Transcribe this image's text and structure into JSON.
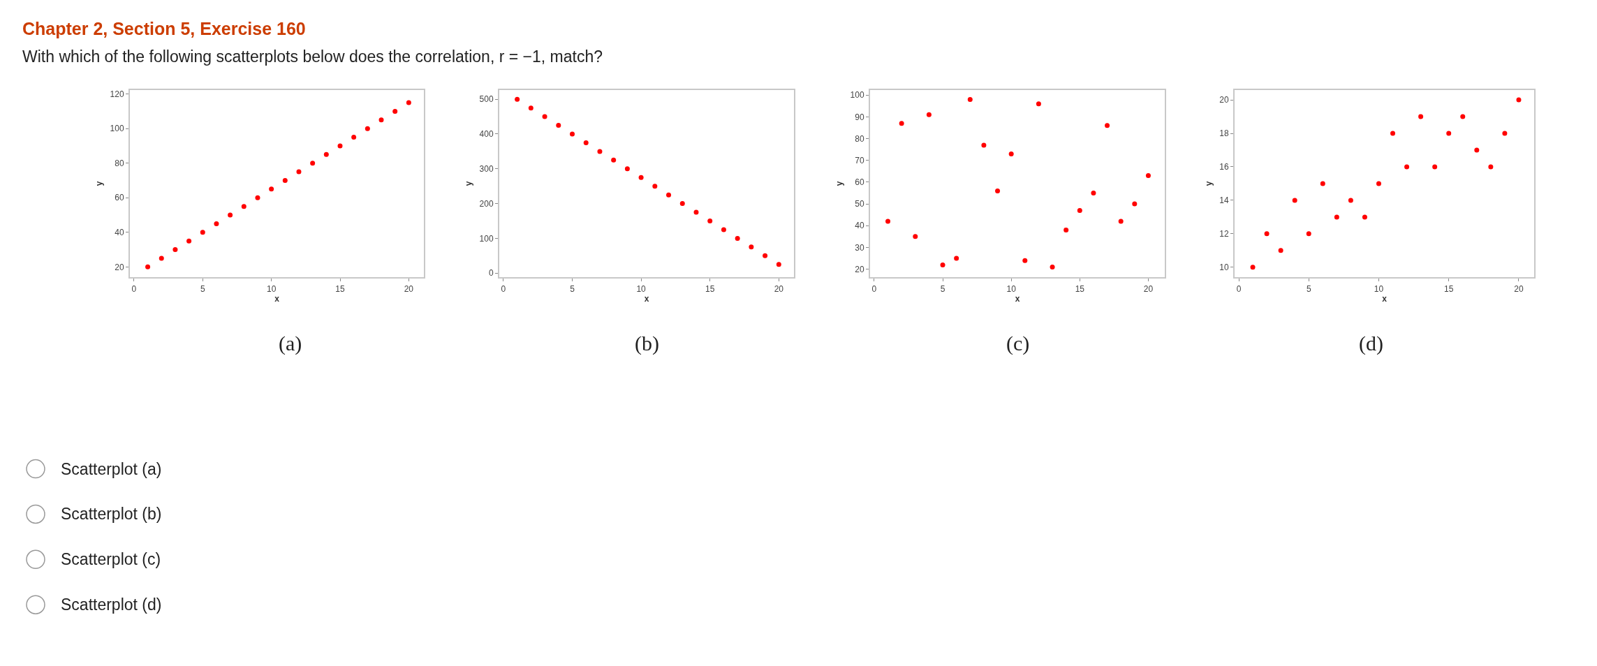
{
  "chart_data": [
    {
      "type": "other",
      "title": "Chapter 2, Section 5, Exercise 160",
      "subtitle": "With which of the following scatterplots below does the correlation, r = −1, match?"
    },
    {
      "type": "scatter",
      "xlabel": "x",
      "ylabel": "y",
      "annotations": [
        "(a)"
      ],
      "x": [
        1,
        2,
        3,
        4,
        5,
        6,
        7,
        8,
        9,
        10,
        11,
        12,
        13,
        14,
        15,
        16,
        17,
        18,
        19,
        20
      ],
      "values": [
        20,
        25,
        30,
        35,
        40,
        45,
        50,
        55,
        60,
        65,
        70,
        75,
        80,
        85,
        90,
        95,
        100,
        105,
        110,
        115
      ],
      "color": "#ff0000",
      "marker": "circle",
      "xlim": [
        -0.3,
        21.1
      ],
      "xticks": [
        0,
        5,
        10,
        15,
        20
      ],
      "ylim": [
        14,
        122.4
      ],
      "yticks": [
        20,
        40,
        60,
        80,
        100,
        120
      ]
    },
    {
      "type": "scatter",
      "xlabel": "x",
      "ylabel": "y",
      "annotations": [
        "(b)"
      ],
      "x": [
        1,
        2,
        3,
        4,
        5,
        6,
        7,
        8,
        9,
        10,
        11,
        12,
        13,
        14,
        15,
        16,
        17,
        18,
        19,
        20
      ],
      "values": [
        500,
        475,
        450,
        425,
        400,
        375,
        350,
        325,
        300,
        275,
        250,
        225,
        200,
        175,
        150,
        125,
        100,
        75,
        50,
        25
      ],
      "color": "#ff0000",
      "marker": "circle",
      "xlim": [
        -0.3,
        21.1
      ],
      "xticks": [
        0,
        5,
        10,
        15,
        20
      ],
      "ylim": [
        -12,
        527
      ],
      "yticks": [
        0,
        100,
        200,
        300,
        400,
        500
      ]
    },
    {
      "type": "scatter",
      "xlabel": "x",
      "ylabel": "y",
      "annotations": [
        "(c)"
      ],
      "x": [
        1,
        2,
        3,
        4,
        5,
        6,
        7,
        8,
        9,
        10,
        11,
        12,
        13,
        14,
        15,
        16,
        17,
        18,
        19,
        20
      ],
      "values": [
        42,
        87,
        35,
        91,
        22,
        25,
        98,
        77,
        56,
        73,
        24,
        96,
        21,
        38,
        47,
        55,
        86,
        42,
        50,
        63
      ],
      "color": "#ff0000",
      "marker": "circle",
      "xlim": [
        -0.3,
        21.2
      ],
      "xticks": [
        0,
        5,
        10,
        15,
        20
      ],
      "ylim": [
        16.3,
        102.4
      ],
      "yticks": [
        20,
        30,
        40,
        50,
        60,
        70,
        80,
        90,
        100
      ]
    },
    {
      "type": "scatter",
      "xlabel": "x",
      "ylabel": "y",
      "annotations": [
        "(d)"
      ],
      "x": [
        1,
        2,
        3,
        4,
        5,
        6,
        7,
        8,
        9,
        10,
        11,
        12,
        13,
        14,
        15,
        16,
        17,
        18,
        19,
        20
      ],
      "values": [
        10,
        12,
        11,
        14,
        12,
        15,
        13,
        14,
        13,
        15,
        18,
        16,
        19,
        16,
        18,
        19,
        17,
        16,
        18,
        20
      ],
      "color": "#ff0000",
      "marker": "circle",
      "xlim": [
        -0.3,
        21.1
      ],
      "xticks": [
        0,
        5,
        10,
        15,
        20
      ],
      "ylim": [
        9.4,
        20.6
      ],
      "yticks": [
        10,
        12,
        14,
        16,
        18,
        20
      ]
    },
    {
      "type": "other",
      "annotations": [
        "Scatterplot (a)",
        "Scatterplot (b)",
        "Scatterplot (c)",
        "Scatterplot (d)"
      ]
    }
  ]
}
